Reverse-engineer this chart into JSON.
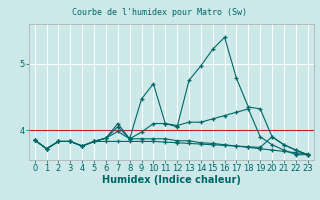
{
  "title": "Courbe de l'humidex pour Matro (Sw)",
  "xlabel": "Humidex (Indice chaleur)",
  "xlim": [
    -0.5,
    23.5
  ],
  "ylim": [
    3.55,
    5.6
  ],
  "yticks": [
    4,
    5
  ],
  "xticks": [
    0,
    1,
    2,
    3,
    4,
    5,
    6,
    7,
    8,
    9,
    10,
    11,
    12,
    13,
    14,
    15,
    16,
    17,
    18,
    19,
    20,
    21,
    22,
    23
  ],
  "bg_color": "#cce8e8",
  "grid_color": "#ffffff",
  "line_color": "#006666",
  "red_line_y": 4.0,
  "lines": [
    [
      3.85,
      3.72,
      3.83,
      3.83,
      3.76,
      3.83,
      3.88,
      4.1,
      3.87,
      4.47,
      4.7,
      4.1,
      4.05,
      4.75,
      4.97,
      5.22,
      5.4,
      4.78,
      4.35,
      4.32,
      3.9,
      3.78,
      3.7,
      3.63
    ],
    [
      3.85,
      3.72,
      3.83,
      3.83,
      3.76,
      3.83,
      3.88,
      4.05,
      3.87,
      3.97,
      4.1,
      4.1,
      4.07,
      4.12,
      4.12,
      4.17,
      4.22,
      4.27,
      4.32,
      3.9,
      3.78,
      3.7,
      3.63,
      3.63
    ],
    [
      3.85,
      3.72,
      3.83,
      3.83,
      3.76,
      3.83,
      3.88,
      3.98,
      3.87,
      3.87,
      3.87,
      3.87,
      3.84,
      3.84,
      3.81,
      3.8,
      3.78,
      3.76,
      3.74,
      3.72,
      3.7,
      3.68,
      3.66,
      3.64
    ],
    [
      3.85,
      3.72,
      3.83,
      3.83,
      3.76,
      3.83,
      3.83,
      3.83,
      3.83,
      3.83,
      3.83,
      3.82,
      3.81,
      3.8,
      3.79,
      3.78,
      3.77,
      3.76,
      3.75,
      3.74,
      3.9,
      3.78,
      3.7,
      3.63
    ]
  ],
  "title_bg": "#cce8e8",
  "title_fontsize": 6.0,
  "xlabel_fontsize": 7.0,
  "tick_fontsize": 6.0
}
